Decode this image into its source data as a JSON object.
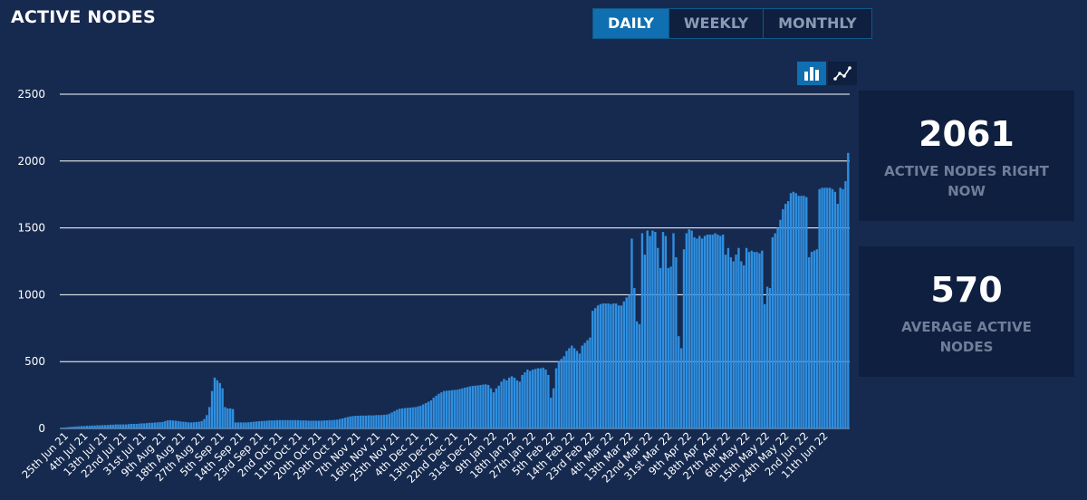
{
  "title": "ACTIVE NODES",
  "tabs": [
    {
      "label": "DAILY",
      "active": true
    },
    {
      "label": "WEEKLY",
      "active": false
    },
    {
      "label": "MONTHLY",
      "active": false
    }
  ],
  "chart_toggle": [
    {
      "icon": "bar-chart-icon",
      "active": true
    },
    {
      "icon": "line-chart-icon",
      "active": false
    }
  ],
  "stats": {
    "now_value": "2061",
    "now_label": "ACTIVE NODES RIGHT NOW",
    "avg_value": "570",
    "avg_label": "AVERAGE ACTIVE NODES"
  },
  "colors": {
    "background": "#162a50",
    "bar": "#2f8fe0",
    "active_tab": "#0f6fb0",
    "card": "#0f1f40",
    "grid": "#ffffff"
  },
  "chart_data": {
    "type": "bar",
    "ylim": [
      0,
      2500
    ],
    "yticks": [
      0,
      500,
      1000,
      1500,
      2000,
      2500
    ],
    "grid": true,
    "xtick_labels": [
      "25th Jun 21",
      "4th Jul 21",
      "13th Jul 21",
      "22nd Jul 21",
      "31st Jul 21",
      "9th Aug 21",
      "18th Aug 21",
      "27th Aug 21",
      "5th Sep 21",
      "14th Sep 21",
      "23rd Sep 21",
      "2nd Oct 21",
      "11th Oct 21",
      "20th Oct 21",
      "29th Oct 21",
      "7th Nov 21",
      "16th Nov 21",
      "25th Nov 21",
      "4th Dec 21",
      "13th Dec 21",
      "22nd Dec 21",
      "31st Dec 21",
      "9th Jan 22",
      "18th Jan 22",
      "27th Jan 22",
      "5th Feb 22",
      "14th Feb 22",
      "23rd Feb 22",
      "4th Mar 22",
      "13th Mar 22",
      "22nd Mar 22",
      "31st Mar 22",
      "9th Apr 22",
      "18th Apr 22",
      "27th Apr 22",
      "6th May 22",
      "15th May 22",
      "24th May 22",
      "2nd Jun 22",
      "11th Jun 22"
    ],
    "values": [
      5,
      6,
      8,
      10,
      12,
      14,
      15,
      16,
      18,
      18,
      20,
      20,
      22,
      22,
      24,
      24,
      25,
      25,
      26,
      28,
      28,
      30,
      30,
      30,
      30,
      30,
      32,
      34,
      34,
      34,
      36,
      38,
      38,
      40,
      42,
      42,
      44,
      45,
      47,
      48,
      55,
      60,
      62,
      60,
      58,
      55,
      52,
      50,
      48,
      45,
      45,
      46,
      48,
      50,
      55,
      70,
      100,
      160,
      280,
      380,
      360,
      340,
      300,
      160,
      150,
      150,
      145,
      45,
      45,
      45,
      45,
      45,
      46,
      48,
      50,
      52,
      54,
      55,
      56,
      58,
      60,
      60,
      60,
      62,
      62,
      62,
      62,
      62,
      62,
      62,
      62,
      62,
      60,
      60,
      60,
      58,
      58,
      58,
      58,
      58,
      58,
      60,
      60,
      62,
      62,
      64,
      66,
      70,
      75,
      80,
      85,
      90,
      92,
      95,
      95,
      96,
      96,
      96,
      98,
      98,
      98,
      100,
      100,
      100,
      102,
      104,
      110,
      120,
      130,
      140,
      148,
      150,
      152,
      154,
      156,
      158,
      160,
      165,
      170,
      180,
      190,
      200,
      210,
      230,
      245,
      260,
      270,
      280,
      282,
      284,
      286,
      288,
      290,
      295,
      300,
      305,
      310,
      315,
      318,
      320,
      322,
      325,
      328,
      330,
      325,
      300,
      270,
      300,
      320,
      350,
      370,
      360,
      380,
      390,
      380,
      360,
      350,
      400,
      420,
      440,
      430,
      440,
      445,
      450,
      450,
      455,
      440,
      400,
      230,
      300,
      450,
      500,
      520,
      540,
      580,
      600,
      620,
      600,
      580,
      560,
      620,
      640,
      660,
      680,
      880,
      900,
      920,
      930,
      935,
      935,
      935,
      930,
      935,
      935,
      920,
      920,
      950,
      980,
      1000,
      1420,
      1050,
      800,
      780,
      1460,
      1300,
      1480,
      1440,
      1480,
      1470,
      1350,
      1200,
      1470,
      1440,
      1200,
      1210,
      1460,
      1280,
      690,
      600,
      1340,
      1460,
      1490,
      1480,
      1430,
      1420,
      1440,
      1420,
      1440,
      1450,
      1450,
      1450,
      1460,
      1450,
      1440,
      1450,
      1300,
      1350,
      1280,
      1250,
      1300,
      1350,
      1250,
      1220,
      1350,
      1320,
      1330,
      1320,
      1320,
      1310,
      1330,
      930,
      1060,
      1050,
      1430,
      1460,
      1500,
      1560,
      1640,
      1680,
      1700,
      1760,
      1770,
      1760,
      1740,
      1740,
      1740,
      1730,
      1280,
      1320,
      1330,
      1340,
      1790,
      1800,
      1800,
      1800,
      1800,
      1790,
      1770,
      1680,
      1800,
      1790,
      1850,
      2061
    ]
  }
}
